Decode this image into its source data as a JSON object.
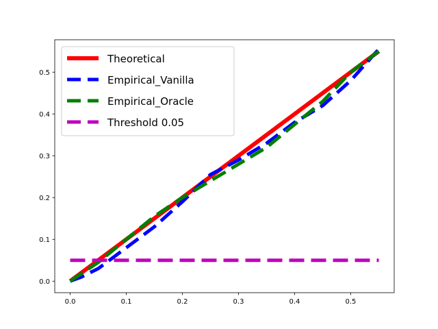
{
  "chart_data": {
    "type": "line",
    "title": "",
    "xlabel": "",
    "ylabel": "",
    "xlim": [
      -0.0275,
      0.5775
    ],
    "ylim": [
      -0.0275,
      0.5775
    ],
    "xticks": [
      0.0,
      0.1,
      0.2,
      0.3,
      0.4,
      0.5
    ],
    "yticks": [
      0.0,
      0.1,
      0.2,
      0.3,
      0.4,
      0.5
    ],
    "xtick_labels": [
      "0.0",
      "0.1",
      "0.2",
      "0.3",
      "0.4",
      "0.5"
    ],
    "ytick_labels": [
      "0.0",
      "0.1",
      "0.2",
      "0.3",
      "0.4",
      "0.5"
    ],
    "grid": false,
    "legend_position": "upper-left",
    "series": [
      {
        "name": "Theoretical",
        "color": "#ff0000",
        "style": "solid",
        "x": [
          0.0,
          0.55
        ],
        "y": [
          0.0,
          0.55
        ]
      },
      {
        "name": "Empirical_Vanilla",
        "color": "#0000ff",
        "style": "dashed",
        "x": [
          0.0,
          0.02,
          0.05,
          0.07,
          0.1,
          0.15,
          0.2,
          0.25,
          0.3,
          0.35,
          0.4,
          0.45,
          0.5,
          0.55
        ],
        "y": [
          0.0,
          0.01,
          0.03,
          0.05,
          0.08,
          0.13,
          0.19,
          0.255,
          0.29,
          0.33,
          0.38,
          0.42,
          0.48,
          0.555
        ]
      },
      {
        "name": "Empirical_Oracle",
        "color": "#008000",
        "style": "dashed",
        "x": [
          0.0,
          0.05,
          0.1,
          0.15,
          0.2,
          0.25,
          0.3,
          0.35,
          0.4,
          0.45,
          0.5,
          0.55
        ],
        "y": [
          0.0,
          0.045,
          0.1,
          0.155,
          0.2,
          0.24,
          0.28,
          0.32,
          0.375,
          0.43,
          0.5,
          0.55
        ]
      },
      {
        "name": "Threshold 0.05",
        "color": "#bf00bf",
        "style": "dashed",
        "x": [
          0.0,
          0.55
        ],
        "y": [
          0.05,
          0.05
        ]
      }
    ]
  }
}
